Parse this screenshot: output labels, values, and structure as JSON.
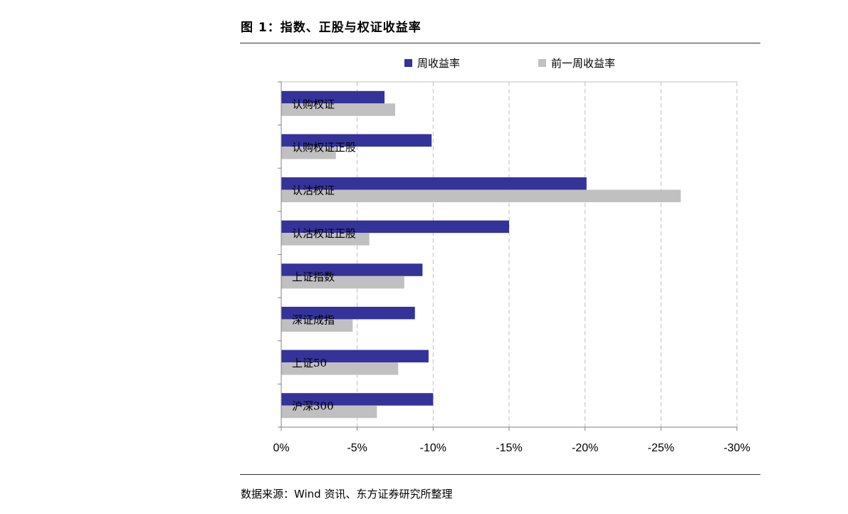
{
  "figure": {
    "title": "图 1：指数、正股与权证收益率",
    "source": "数据来源：Wind 资讯、东方证券研究所整理"
  },
  "colors": {
    "series_current": "#333399",
    "series_prev": "#c0c0c0",
    "grid": "#c0c0c0",
    "axis": "#808080"
  },
  "chart_data": {
    "type": "bar",
    "orientation": "horizontal",
    "categories": [
      "认购权证",
      "认购权证正股",
      "认沽权证",
      "认沽权证正股",
      "上证指数",
      "深证成指",
      "上证50",
      "沪深300"
    ],
    "series": [
      {
        "name": "周收益率",
        "values": [
          -6.8,
          -9.9,
          -20.1,
          -15.0,
          -9.3,
          -8.8,
          -9.7,
          -10.0
        ]
      },
      {
        "name": "前一周收益率",
        "values": [
          -7.5,
          -3.6,
          -26.3,
          -5.8,
          -8.1,
          -4.7,
          -7.7,
          -6.3
        ]
      }
    ],
    "xlim": [
      0,
      -30
    ],
    "xticks": [
      0,
      -5,
      -10,
      -15,
      -20,
      -25,
      -30
    ],
    "xtick_labels": [
      "0%",
      "-5%",
      "-10%",
      "-15%",
      "-20%",
      "-25%",
      "-30%"
    ],
    "legend_position": "top",
    "grid": "vertical dashed"
  }
}
